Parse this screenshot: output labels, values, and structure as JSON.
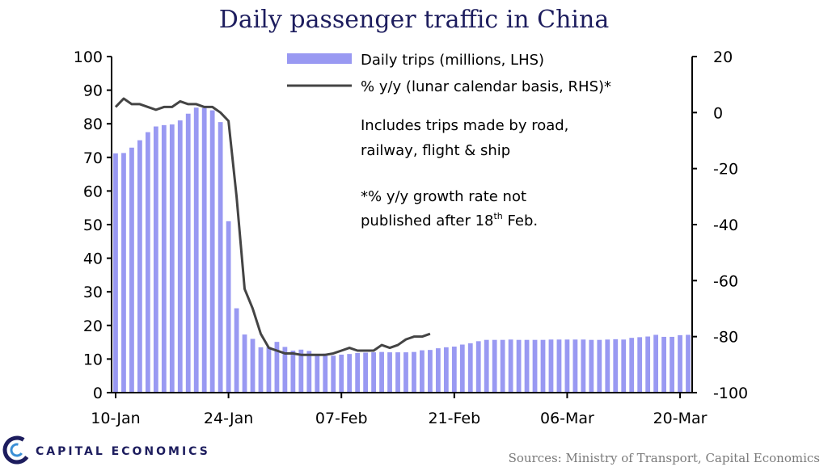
{
  "brand": {
    "name": "CAPITAL ECONOMICS",
    "color": "#1d1d5e"
  },
  "source": "Sources: Ministry of Transport, Capital Economics",
  "chart_data": {
    "type": "bar",
    "title": "Daily passenger traffic in China",
    "x_ticks": [
      "10-Jan",
      "24-Jan",
      "07-Feb",
      "21-Feb",
      "06-Mar",
      "20-Mar"
    ],
    "x_tick_dates": [
      "2020-01-10",
      "2020-01-24",
      "2020-02-07",
      "2020-02-21",
      "2020-03-06",
      "2020-03-20"
    ],
    "x_range": [
      "2020-01-10",
      "2020-03-22"
    ],
    "left_axis": {
      "range": [
        0,
        100
      ],
      "ticks": [
        "0",
        "10",
        "20",
        "30",
        "40",
        "50",
        "60",
        "70",
        "80",
        "90",
        "100"
      ]
    },
    "right_axis": {
      "range": [
        -100,
        20
      ],
      "ticks": [
        "-100",
        "-80",
        "-60",
        "-40",
        "-20",
        "0",
        "20"
      ]
    },
    "grid": false,
    "legend_position": "top-center",
    "notes": [
      {
        "id": "note1a",
        "text": "Includes  trips made by road,"
      },
      {
        "id": "note1b",
        "text": "railway,  flight & ship"
      },
      {
        "id": "note2a",
        "text": "*% y/y growth  rate not"
      },
      {
        "id": "note2b",
        "text": "published  after 18",
        "sup": "th",
        "suffix": "  Feb."
      }
    ],
    "series": [
      {
        "name": "Daily trips (millions, LHS)",
        "type": "bar",
        "axis": "left",
        "color": "#9999f2",
        "start_date": "2020-01-10",
        "values": [
          71.2,
          71.3,
          72.9,
          75.1,
          77.5,
          79.2,
          79.6,
          79.8,
          81.0,
          83.0,
          84.8,
          84.7,
          84.0,
          80.5,
          51.0,
          25.1,
          17.3,
          16.0,
          13.5,
          13.6,
          15.1,
          13.6,
          12.5,
          12.8,
          12.4,
          11.5,
          11.6,
          11.0,
          11.3,
          11.5,
          11.8,
          11.9,
          12.0,
          12.1,
          12.0,
          12.0,
          12.0,
          12.1,
          12.6,
          12.7,
          13.2,
          13.5,
          13.7,
          14.3,
          14.7,
          15.3,
          15.7,
          15.7,
          15.7,
          15.8,
          15.7,
          15.7,
          15.7,
          15.7,
          15.8,
          15.8,
          15.8,
          15.8,
          15.8,
          15.7,
          15.7,
          15.8,
          15.9,
          15.8,
          16.3,
          16.5,
          16.7,
          17.2,
          16.6,
          16.6,
          17.1,
          17.2
        ]
      },
      {
        "name": "% y/y (lunar calendar basis, RHS)*",
        "type": "line",
        "axis": "right",
        "color": "#444444",
        "start_date": "2020-01-10",
        "values": [
          2,
          5,
          3,
          3,
          2,
          1,
          2,
          2,
          4,
          3,
          3,
          2,
          2,
          0,
          -3,
          -30,
          -63,
          -70,
          -79,
          -84,
          -85,
          -86,
          -86,
          -86.5,
          -86.5,
          -86.5,
          -86.5,
          -86,
          -85,
          -84,
          -85,
          -85,
          -85,
          -83,
          -84,
          -83,
          -81,
          -80,
          -80,
          -79
        ]
      }
    ]
  }
}
